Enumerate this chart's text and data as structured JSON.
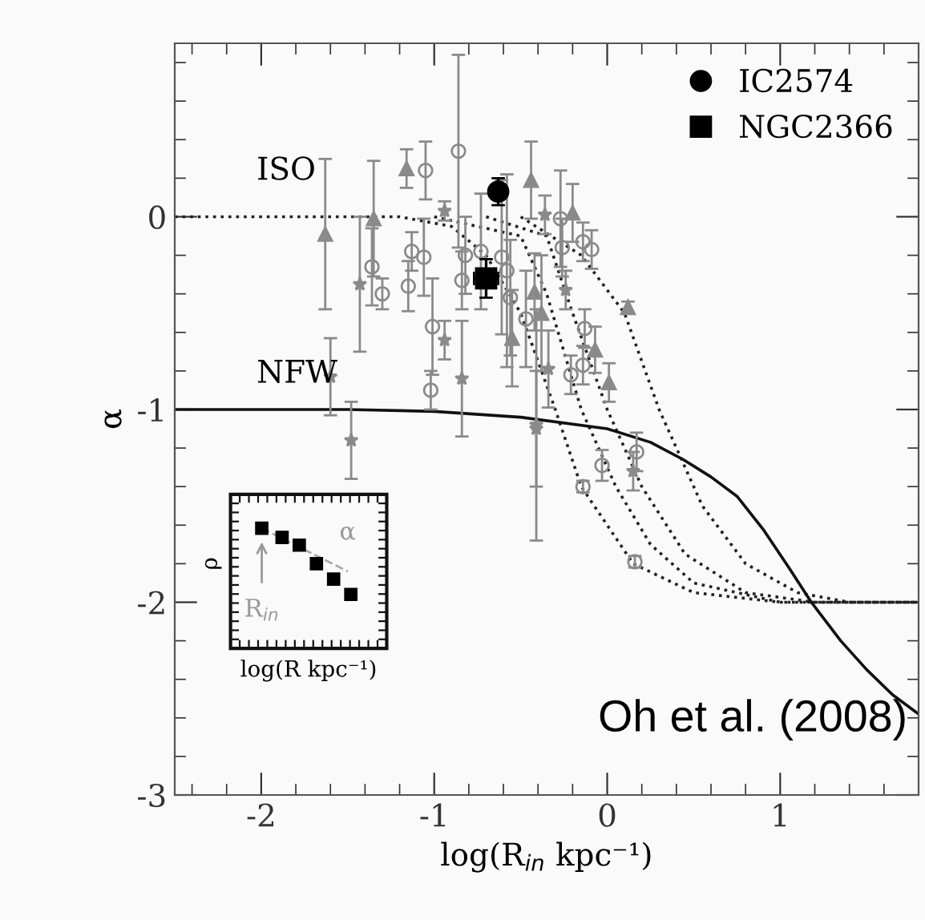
{
  "chart_data": {
    "type": "scatter",
    "xlabel": "log(R$_{in}$ kpc⁻¹)",
    "ylabel": "α",
    "xlim": [
      -2.5,
      1.8
    ],
    "ylim": [
      -3,
      0.9
    ],
    "xticks": [
      -2,
      -1,
      0,
      1
    ],
    "yticks": [
      -3,
      -2,
      -1,
      0
    ],
    "legend": "top right",
    "grid": false,
    "series": [
      {
        "type": "line",
        "color": "#222222",
        "line_style": "dotted",
        "x": [
          -2.5,
          -1.2,
          -0.9,
          -0.7,
          -0.5,
          -0.3,
          -0.15,
          0.15,
          0.5,
          1.0,
          1.8
        ],
        "values": [
          0,
          0,
          -0.05,
          -0.2,
          -0.5,
          -1.0,
          -1.4,
          -1.8,
          -1.95,
          -2,
          -2
        ]
      },
      {
        "type": "line",
        "color": "#222222",
        "line_style": "dotted",
        "x": [
          -1.0,
          -0.5,
          -0.35,
          -0.15,
          0.05,
          0.25,
          0.5,
          1.0,
          1.8
        ],
        "values": [
          0,
          -0.1,
          -0.4,
          -1.0,
          -1.4,
          -1.7,
          -1.9,
          -2,
          -2
        ]
      },
      {
        "type": "line",
        "color": "#222222",
        "line_style": "dotted",
        "x": [
          -0.7,
          -0.35,
          -0.2,
          0.0,
          0.2,
          0.45,
          0.8,
          1.2,
          1.8
        ],
        "values": [
          0,
          -0.1,
          -0.5,
          -1.0,
          -1.4,
          -1.75,
          -1.95,
          -2,
          -2
        ]
      },
      {
        "type": "line",
        "color": "#222222",
        "line_style": "dotted",
        "x": [
          -0.5,
          -0.15,
          0.1,
          0.3,
          0.55,
          0.8,
          1.1,
          1.4,
          1.8
        ],
        "values": [
          0,
          -0.2,
          -0.5,
          -1.0,
          -1.5,
          -1.8,
          -1.95,
          -2,
          -2
        ]
      },
      {
        "type": "line",
        "color": "#111111",
        "line_style": "solid",
        "x": [
          -2.5,
          -1.5,
          -1.0,
          -0.5,
          0.0,
          0.25,
          0.44,
          0.6,
          0.75,
          0.9,
          1.05,
          1.18,
          1.35,
          1.5,
          1.65,
          1.8
        ],
        "values": [
          -1.0,
          -1.0,
          -1.01,
          -1.04,
          -1.1,
          -1.17,
          -1.26,
          -1.35,
          -1.45,
          -1.62,
          -1.82,
          -2.0,
          -2.2,
          -2.35,
          -2.48,
          -2.58
        ]
      },
      {
        "color": "#8a8a8a",
        "marker": "triangle",
        "x": [
          -1.63,
          -1.16,
          -1.35,
          -0.44,
          -0.2,
          0.12,
          -0.07,
          0.01,
          -0.42,
          -0.38,
          -0.55
        ],
        "values": [
          -0.09,
          0.25,
          -0.01,
          0.19,
          0.02,
          -0.47,
          -0.69,
          -0.86,
          -0.39,
          -0.5,
          -0.63
        ],
        "errors": [
          0.39,
          0.1,
          0.3,
          0.2,
          0.15,
          0.03,
          0.12,
          0.1,
          0.2,
          0.3,
          0.25
        ]
      },
      {
        "color": "#8a8a8a",
        "marker": "star",
        "x": [
          -1.6,
          -1.48,
          -1.43,
          -0.94,
          -0.94,
          -0.84,
          -0.36,
          -0.24,
          -0.34,
          -0.41,
          0.15,
          -0.41
        ],
        "values": [
          -0.83,
          -1.16,
          -0.35,
          0.03,
          -0.64,
          -0.84,
          0.01,
          -0.38,
          -0.79,
          -1.1,
          -1.32,
          -1.08
        ],
        "errors": [
          0.2,
          0.2,
          0.35,
          0.05,
          0.1,
          0.3,
          0.1,
          0.1,
          0.2,
          0.3,
          0.1,
          0.6
        ]
      },
      {
        "color": "#8a8a8a",
        "marker": "circle",
        "x": [
          -0.86,
          -1.05,
          -1.13,
          -1.06,
          -1.15,
          -1.3,
          -1.36,
          -1.01,
          -1.02,
          -0.82,
          -0.84,
          -0.73,
          -0.61,
          -0.58,
          -0.56,
          -0.47,
          -0.27,
          -0.26,
          -0.14,
          -0.09,
          -0.13,
          -0.14,
          -0.21,
          -0.14,
          0.16,
          -0.03,
          0.17
        ],
        "values": [
          0.34,
          0.24,
          -0.18,
          -0.21,
          -0.36,
          -0.4,
          -0.26,
          -0.57,
          -0.9,
          -0.2,
          -0.33,
          -0.18,
          -0.21,
          -0.28,
          -0.42,
          -0.53,
          -0.01,
          -0.16,
          -0.13,
          -0.17,
          -0.58,
          -0.77,
          -0.82,
          -1.4,
          -1.79,
          -1.29,
          -1.22
        ],
        "errors": [
          0.5,
          0.15,
          0.1,
          0.2,
          0.13,
          0.08,
          0.2,
          0.25,
          0.1,
          0.2,
          0.15,
          0.3,
          0.4,
          0.5,
          0.3,
          0.25,
          0.25,
          0.15,
          0.1,
          0.1,
          0.1,
          0.1,
          0.1,
          0.03,
          0.03,
          0.08,
          0.1
        ]
      },
      {
        "name": "IC2574",
        "color": "#000000",
        "marker": "circle",
        "x": [
          -0.63
        ],
        "values": [
          0.13
        ],
        "errors": [
          0.07
        ]
      },
      {
        "name": "NGC2366",
        "color": "#000000",
        "marker": "square",
        "x": [
          -0.7
        ],
        "values": [
          -0.32
        ],
        "errors": [
          0.1
        ],
        "xerrors": [
          0.07
        ]
      }
    ],
    "annotations": [
      "ISO",
      "NFW",
      "Oh et al. (2008)",
      "ρ",
      "α",
      "R$_{in}$",
      "log(R kpc⁻¹)"
    ]
  }
}
